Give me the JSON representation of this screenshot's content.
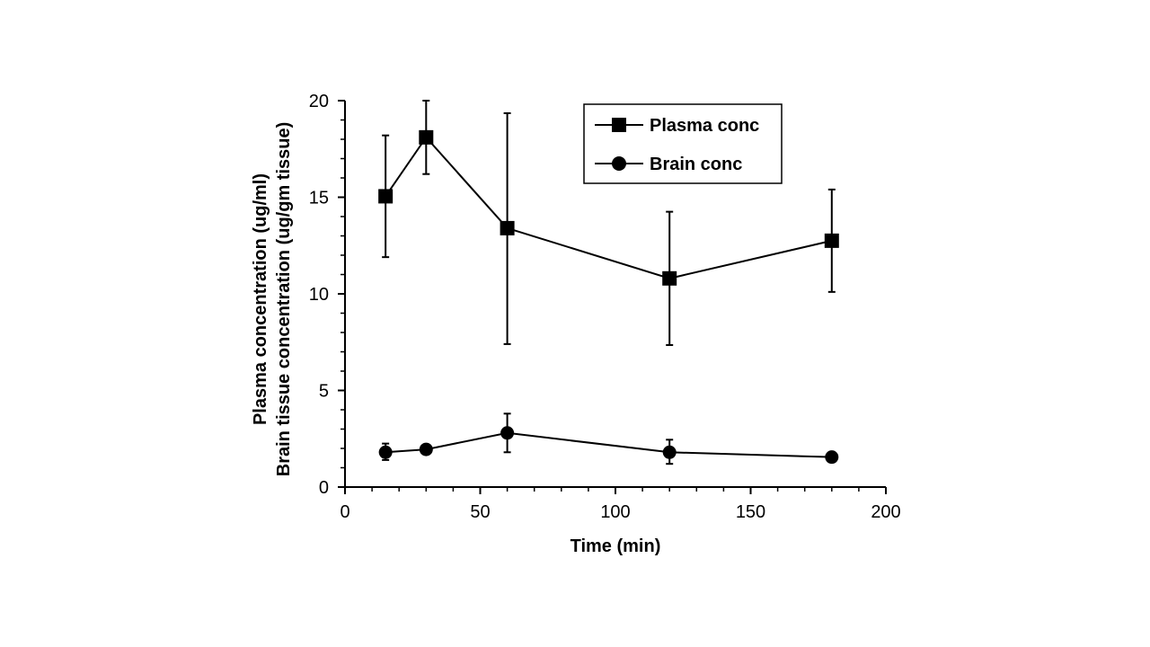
{
  "chart_data": {
    "type": "line",
    "xlabel": "Time (min)",
    "ylabel_lines": [
      "Plasma concentration (ug/ml)",
      "Brain tissue concentration (ug/gm tissue)"
    ],
    "xlim": [
      0,
      200
    ],
    "ylim": [
      0,
      20
    ],
    "x_ticks": [
      0,
      50,
      100,
      150,
      200
    ],
    "y_ticks": [
      0,
      5,
      10,
      15,
      20
    ],
    "grid": false,
    "legend_position": "top-right",
    "series": [
      {
        "name": "Plasma conc",
        "marker": "square",
        "color": "#000000",
        "x": [
          15,
          30,
          60,
          120,
          180
        ],
        "y": [
          15.05,
          18.1,
          13.4,
          10.8,
          12.75
        ],
        "err_low": [
          11.9,
          16.2,
          7.4,
          7.35,
          10.1
        ],
        "err_high": [
          18.2,
          20.0,
          19.35,
          14.25,
          15.4
        ]
      },
      {
        "name": "Brain conc",
        "marker": "circle",
        "color": "#000000",
        "x": [
          15,
          30,
          60,
          120,
          180
        ],
        "y": [
          1.8,
          1.95,
          2.8,
          1.8,
          1.55
        ],
        "err_low": [
          1.4,
          1.95,
          1.8,
          1.2,
          1.55
        ],
        "err_high": [
          2.25,
          1.95,
          3.8,
          2.45,
          1.55
        ]
      }
    ]
  }
}
